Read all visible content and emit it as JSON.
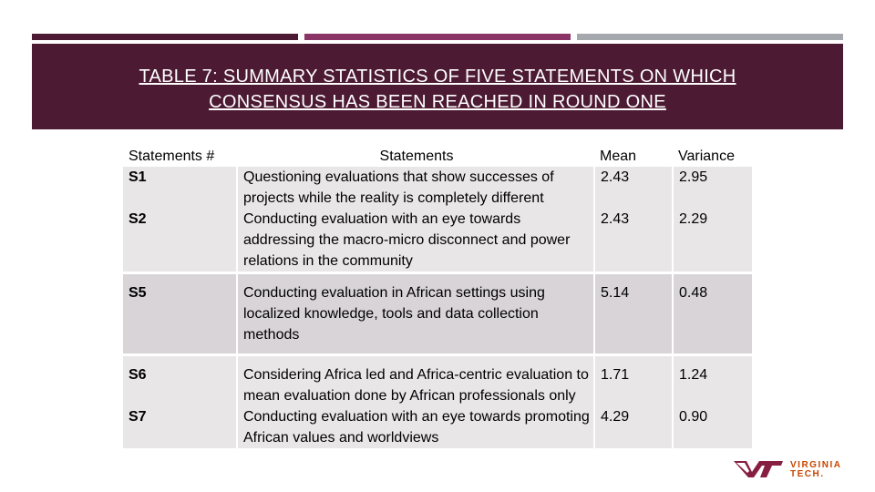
{
  "slide": {
    "title_line1": "TABLE 7: SUMMARY STATISTICS OF FIVE STATEMENTS ON WHICH",
    "title_line2": "CONSENSUS HAS BEEN REACHED IN ROUND ONE",
    "colors": {
      "header_bg": "#4c1a33",
      "bar_dark": "#4c1a33",
      "bar_magenta": "#8a3566",
      "bar_gray": "#a5a8ac",
      "logo_maroon": "#861f41",
      "logo_orange": "#c64600"
    }
  },
  "table": {
    "headers": {
      "id": "Statements #",
      "statement": "Statements",
      "mean": "Mean",
      "variance": "Variance"
    },
    "rows": [
      {
        "id": "S1",
        "statement": "Questioning evaluations that show successes of projects while the reality is completely different",
        "mean": "2.43",
        "variance": "2.95"
      },
      {
        "id": "S2",
        "statement": "Conducting evaluation with an eye towards addressing the macro-micro disconnect and power relations in the community",
        "mean": "2.43",
        "variance": "2.29"
      },
      {
        "id": "S5",
        "statement": "Conducting evaluation in African settings using localized knowledge, tools and data collection methods",
        "mean": "5.14",
        "variance": "0.48"
      },
      {
        "id": "S6",
        "statement": "Considering Africa led and Africa-centric evaluation to mean evaluation done by African professionals only",
        "mean": "1.71",
        "variance": "1.24"
      },
      {
        "id": "S7",
        "statement": "Conducting evaluation with an eye towards promoting African values and worldviews",
        "mean": "4.29",
        "variance": "0.90"
      }
    ]
  },
  "logo": {
    "line1": "VIRGINIA",
    "line2": "TECH."
  }
}
